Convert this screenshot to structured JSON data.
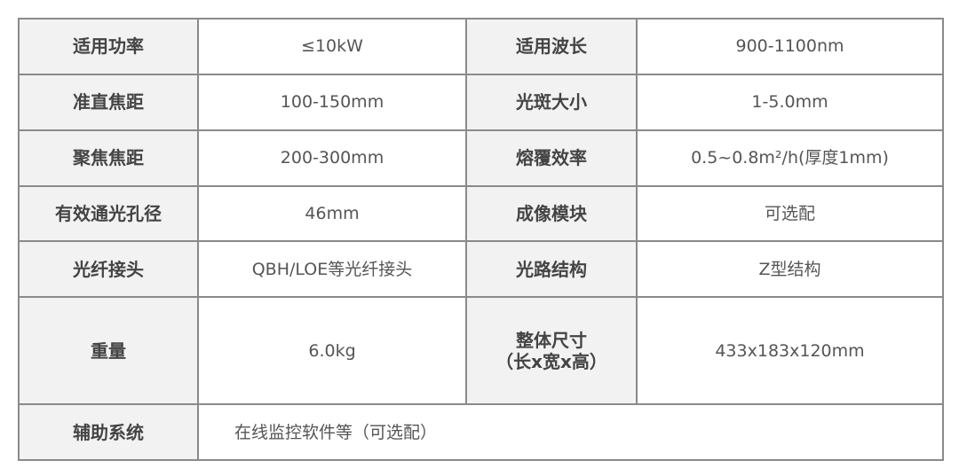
{
  "spec_table": {
    "rows": [
      [
        {
          "label": "适用功率",
          "value": "≤10kW"
        },
        {
          "label": "适用波长",
          "value": "900-1100nm"
        }
      ],
      [
        {
          "label": "准直焦距",
          "value": "100-150mm"
        },
        {
          "label": "光斑大小",
          "value": "1-5.0mm"
        }
      ],
      [
        {
          "label": "聚焦焦距",
          "value": "200-300mm"
        },
        {
          "label": "熔覆效率",
          "value": "0.5~0.8m²/h(厚度1mm)"
        }
      ],
      [
        {
          "label": "有效通光孔径",
          "value": "46mm"
        },
        {
          "label": "成像模块",
          "value": "可选配"
        }
      ],
      [
        {
          "label": "光纤接头",
          "value": "QBH/LOE等光纤接头"
        },
        {
          "label": "光路结构",
          "value": "Z型结构"
        }
      ],
      [
        {
          "label": "重量",
          "value": "6.0kg"
        },
        {
          "label": "整体尺寸",
          "label_line2": "（长x宽x高）",
          "value": "433x183x120mm"
        }
      ]
    ],
    "last_row": {
      "label": "辅助系统",
      "value": "在线监控软件等（可选配）"
    }
  }
}
